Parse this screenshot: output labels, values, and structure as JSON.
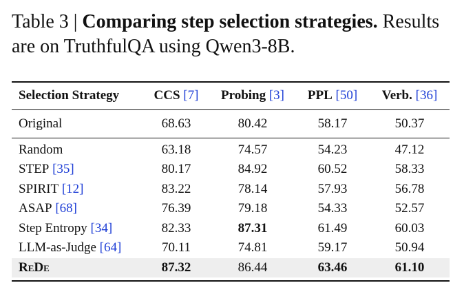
{
  "caption": {
    "label": "Table 3",
    "separator": "|",
    "title": "Comparing step selection strategies.",
    "text": "Results are on TruthfulQA using Qwen3-8B."
  },
  "table": {
    "header": [
      {
        "text": "Selection Strategy"
      },
      {
        "text": "CCS",
        "cite": "[7]"
      },
      {
        "text": "Probing",
        "cite": "[3]"
      },
      {
        "text": "PPL",
        "cite": "[50]"
      },
      {
        "text": "Verb.",
        "cite": "[36]"
      }
    ],
    "rows": [
      {
        "cells": [
          {
            "text": "Original"
          },
          {
            "text": "68.63"
          },
          {
            "text": "80.42"
          },
          {
            "text": "58.17"
          },
          {
            "text": "50.37"
          }
        ],
        "bold": []
      },
      {
        "cells": [
          {
            "text": "Random"
          },
          {
            "text": "63.18"
          },
          {
            "text": "74.57"
          },
          {
            "text": "54.23"
          },
          {
            "text": "47.12"
          }
        ],
        "bold": []
      },
      {
        "cells": [
          {
            "text": "STEP",
            "cite": "[35]"
          },
          {
            "text": "80.17"
          },
          {
            "text": "84.92"
          },
          {
            "text": "60.52"
          },
          {
            "text": "58.33"
          }
        ],
        "bold": []
      },
      {
        "cells": [
          {
            "text": "SPIRIT",
            "cite": "[12]"
          },
          {
            "text": "83.22"
          },
          {
            "text": "78.14"
          },
          {
            "text": "57.93"
          },
          {
            "text": "56.78"
          }
        ],
        "bold": []
      },
      {
        "cells": [
          {
            "text": "ASAP",
            "cite": "[68]"
          },
          {
            "text": "76.39"
          },
          {
            "text": "79.18"
          },
          {
            "text": "54.33"
          },
          {
            "text": "52.57"
          }
        ],
        "bold": []
      },
      {
        "cells": [
          {
            "text": "Step Entropy",
            "cite": "[34]"
          },
          {
            "text": "82.33"
          },
          {
            "text": "87.31"
          },
          {
            "text": "61.49"
          },
          {
            "text": "60.03"
          }
        ],
        "bold": [
          2
        ]
      },
      {
        "cells": [
          {
            "text": "LLM-as-Judge",
            "cite": "[64]"
          },
          {
            "text": "70.11"
          },
          {
            "text": "74.81"
          },
          {
            "text": "59.17"
          },
          {
            "text": "50.94"
          }
        ],
        "bold": []
      },
      {
        "cells": [
          {
            "text": "ReDe"
          },
          {
            "text": "87.32"
          },
          {
            "text": "86.44"
          },
          {
            "text": "63.46"
          },
          {
            "text": "61.10"
          }
        ],
        "bold": [
          0,
          1,
          3,
          4
        ],
        "highlight": true
      }
    ]
  }
}
